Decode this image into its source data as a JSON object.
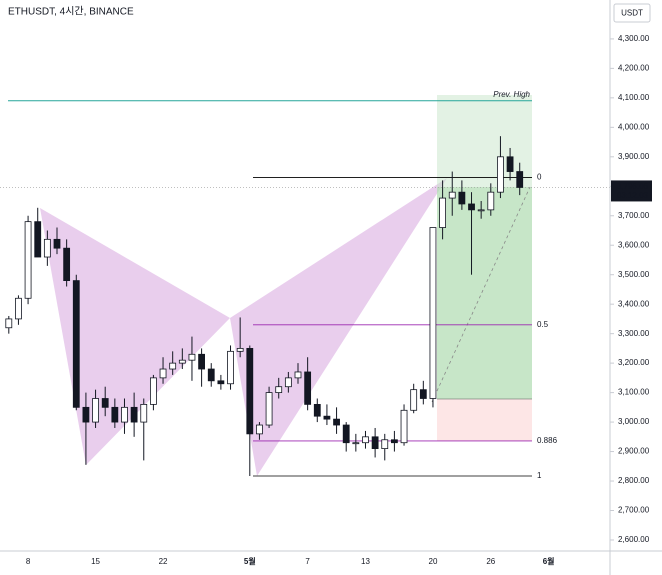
{
  "chart_data": {
    "type": "candlestick",
    "title": "ETHUSDT, 4시간, BINANCE",
    "currency": "USDT",
    "categories": [
      null,
      null,
      "8",
      null,
      null,
      null,
      null,
      null,
      null,
      "15",
      null,
      null,
      null,
      null,
      null,
      null,
      "22",
      null,
      null,
      null,
      null,
      null,
      null,
      null,
      null,
      "5월",
      null,
      null,
      null,
      null,
      null,
      "7",
      null,
      null,
      null,
      null,
      null,
      "13",
      null,
      null,
      null,
      null,
      null,
      null,
      "20",
      null,
      null,
      null,
      null,
      null,
      "26",
      null,
      null,
      null,
      null,
      null,
      "6월",
      null
    ],
    "series": [
      {
        "name": "ETHUSDT",
        "open": [
          3320,
          3350,
          3420,
          3680,
          3560,
          3620,
          3590,
          3480,
          3050,
          3000,
          3080,
          3050,
          3000,
          3050,
          3000,
          3060,
          3150,
          3180,
          3200,
          3210,
          3230,
          3180,
          3140,
          3130,
          3240,
          3250,
          2960,
          2990,
          3100,
          3120,
          3150,
          3170,
          3060,
          3020,
          3010,
          2990,
          2930,
          2930,
          2950,
          2910,
          2940,
          2930,
          3040,
          3110,
          3080,
          3660,
          3760,
          3780,
          3740,
          3720,
          3720,
          3780,
          3900,
          3850,
          null,
          null,
          null,
          null
        ],
        "high": [
          3360,
          3430,
          3700,
          3727,
          3650,
          3660,
          3620,
          3500,
          3100,
          3110,
          3120,
          3080,
          3080,
          3100,
          3080,
          3160,
          3220,
          3240,
          3250,
          3290,
          3250,
          3200,
          3160,
          3260,
          3355,
          3260,
          3000,
          3120,
          3150,
          3170,
          3200,
          3220,
          3080,
          3060,
          3050,
          3000,
          2960,
          2970,
          2980,
          2960,
          2970,
          3060,
          3130,
          3140,
          3660,
          3820,
          3850,
          3820,
          3780,
          3750,
          3810,
          3970,
          3930,
          3880,
          null,
          null,
          null,
          null
        ],
        "low": [
          3300,
          3330,
          3400,
          3560,
          3530,
          3570,
          3460,
          3040,
          2855,
          2980,
          3020,
          2980,
          2960,
          2950,
          2870,
          3040,
          3130,
          3160,
          3180,
          3140,
          3120,
          3120,
          3110,
          3110,
          3220,
          2817,
          2940,
          2980,
          3080,
          3100,
          3130,
          3040,
          3000,
          2990,
          2960,
          2900,
          2900,
          2910,
          2880,
          2870,
          2900,
          2920,
          3030,
          3060,
          3050,
          3620,
          3700,
          3720,
          3500,
          3690,
          3700,
          3760,
          3820,
          3770,
          null,
          null,
          null,
          null
        ],
        "close": [
          3350,
          3420,
          3680,
          3560,
          3620,
          3590,
          3480,
          3050,
          3000,
          3080,
          3050,
          3000,
          3050,
          3000,
          3060,
          3150,
          3180,
          3200,
          3210,
          3230,
          3180,
          3140,
          3130,
          3240,
          3250,
          2960,
          2990,
          3100,
          3120,
          3150,
          3170,
          3060,
          3020,
          3010,
          2990,
          2930,
          2930,
          2950,
          2910,
          2940,
          2930,
          3040,
          3110,
          3080,
          3660,
          3760,
          3780,
          3740,
          3720,
          3720,
          3780,
          3900,
          3850,
          3796,
          null,
          null,
          null,
          null
        ]
      }
    ],
    "ylim": [
      2566,
      4432
    ],
    "yticks": [
      {
        "value": 2600,
        "label": "2,600.00"
      },
      {
        "value": 2700,
        "label": "2,700.00"
      },
      {
        "value": 2800,
        "label": "2,800.00"
      },
      {
        "value": 2900,
        "label": "2,900.00"
      },
      {
        "value": 3000,
        "label": "3,000.00"
      },
      {
        "value": 3100,
        "label": "3,100.00"
      },
      {
        "value": 3200,
        "label": "3,200.00"
      },
      {
        "value": 3300,
        "label": "3,300.00"
      },
      {
        "value": 3400,
        "label": "3,400.00"
      },
      {
        "value": 3500,
        "label": "3,500.00"
      },
      {
        "value": 3600,
        "label": "3,600.00"
      },
      {
        "value": 3700,
        "label": "3,700.00"
      },
      {
        "value": 3800,
        "label": "3,800.00"
      },
      {
        "value": 3900,
        "label": "3,900.00"
      },
      {
        "value": 4000,
        "label": "4,000.00"
      },
      {
        "value": 4100,
        "label": "4,100.00"
      },
      {
        "value": 4200,
        "label": "4,200.00"
      },
      {
        "value": 4300,
        "label": "4,300.00"
      }
    ],
    "prev_high": {
      "label": "Prev. High",
      "value": 4090,
      "color": "#26a69a"
    },
    "fib_levels": [
      {
        "level": 0,
        "price": 3830,
        "color": "#000000"
      },
      {
        "level": 0.5,
        "price": 3330,
        "color": "#9c27b0"
      },
      {
        "level": 0.886,
        "price": 2936,
        "color": "#9c27b0"
      },
      {
        "level": 1,
        "price": 2817,
        "color": "#000000"
      }
    ],
    "last_price": {
      "value": 3796.06,
      "label": "3,796.06"
    },
    "countdown": "03:12:03"
  }
}
